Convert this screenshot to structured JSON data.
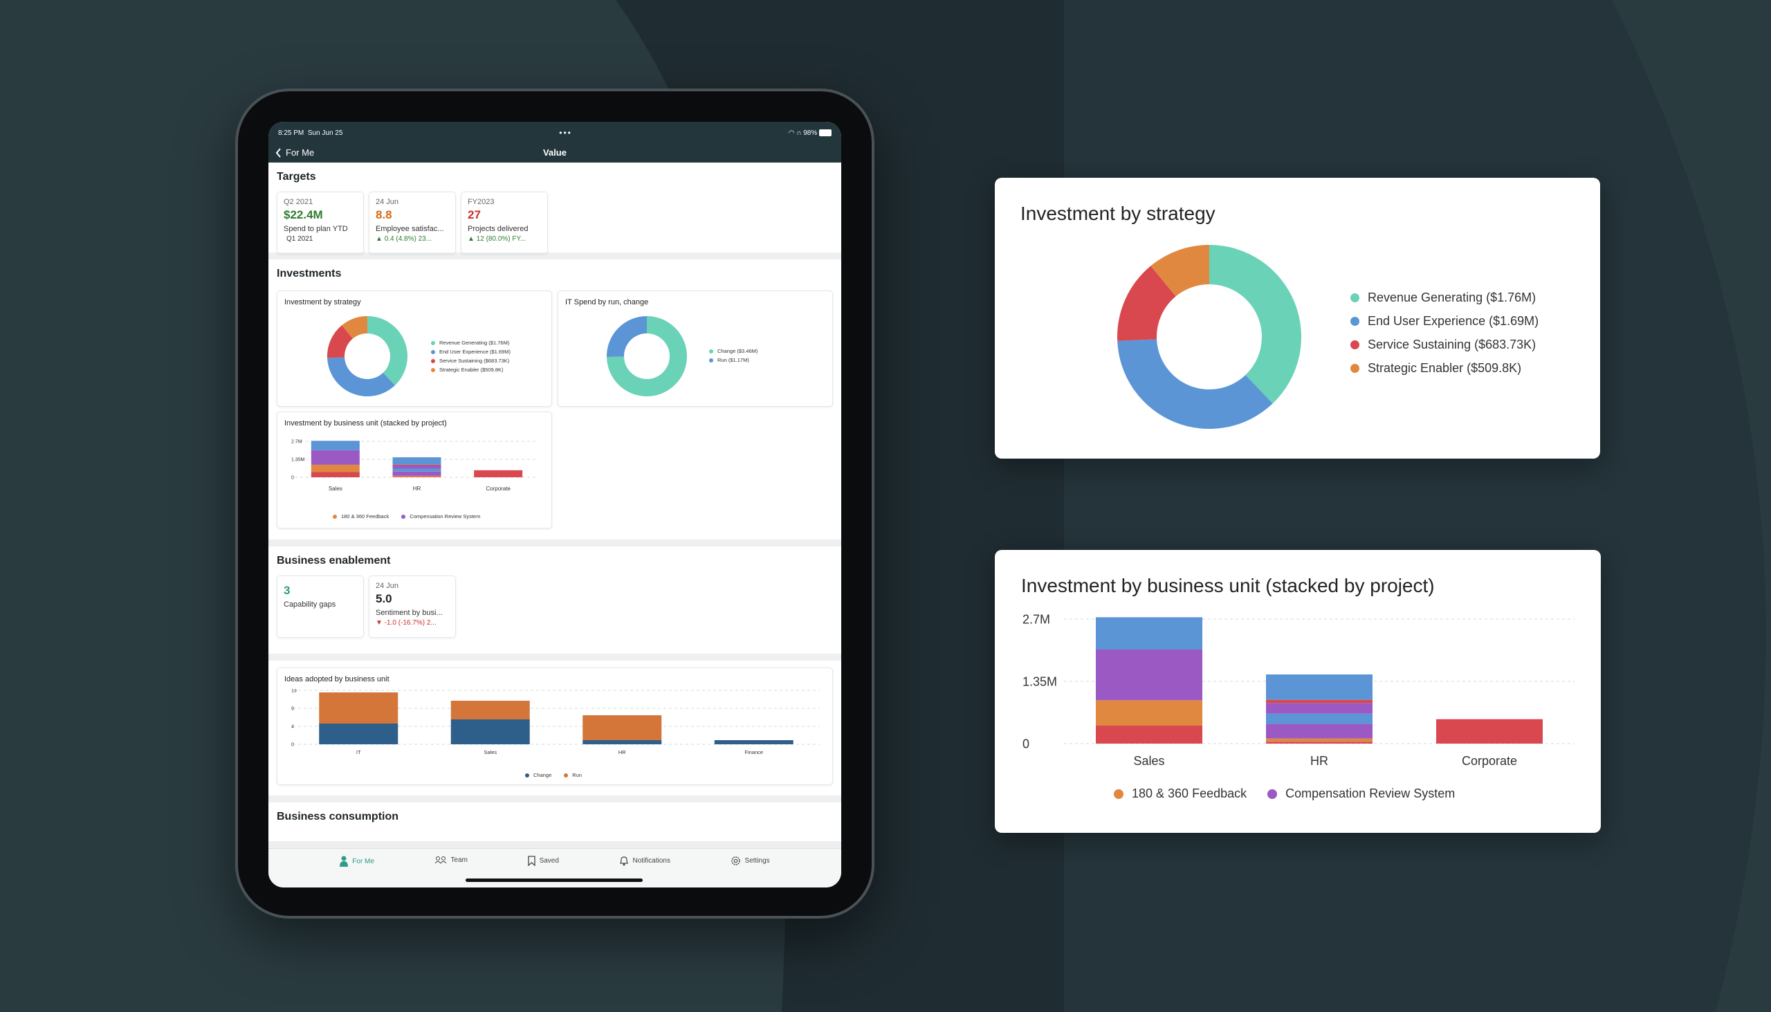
{
  "colors": {
    "teal": "#69d2b7",
    "blue": "#5b95d6",
    "red": "#d9484e",
    "orange": "#e08840",
    "purple": "#9b59c4",
    "darkblue": "#2e5f8a",
    "runorange": "#d4763a"
  },
  "status": {
    "time": "8:25 PM",
    "date": "Sun Jun 25",
    "battery": "98%"
  },
  "nav": {
    "back_label": "For Me",
    "title": "Value"
  },
  "targets": {
    "title": "Targets",
    "kpis": [
      {
        "date": "Q2 2021",
        "value": "$22.4M",
        "label": "Spend to plan YTD",
        "change": "Q1 2021"
      },
      {
        "date": "24 Jun",
        "value": "8.8",
        "label": "Employee satisfac...",
        "change": "0.4 (4.8%) 23..."
      },
      {
        "date": "FY2023",
        "value": "27",
        "label": "Projects delivered",
        "change": "12 (80.0%) FY..."
      }
    ]
  },
  "investments": {
    "title": "Investments",
    "strategy": {
      "title": "Investment by strategy",
      "legend": [
        "Revenue Generating ($1.76M)",
        "End User Experience ($1.69M)",
        "Service Sustaining ($683.73K)",
        "Strategic Enabler ($509.8K)"
      ]
    },
    "it_spend": {
      "title": "IT Spend by run, change",
      "legend": [
        "Change ($3.46M)",
        "Run ($1.17M)"
      ]
    },
    "bu": {
      "title": "Investment by business unit (stacked by project)",
      "yticks": [
        "2.7M",
        "1.35M",
        "0"
      ],
      "categories": [
        "Sales",
        "HR",
        "Corporate"
      ],
      "legend": [
        "180 & 360 Feedback",
        "Compensation Review System"
      ]
    }
  },
  "enablement": {
    "title": "Business enablement",
    "kpis": [
      {
        "date": "",
        "value": "3",
        "label": "Capability gaps",
        "change": ""
      },
      {
        "date": "24 Jun",
        "value": "5.0",
        "label": "Sentiment by busi...",
        "change": "-1.0 (-16.7%) 2..."
      }
    ]
  },
  "ideas": {
    "title": "Ideas adopted by business unit",
    "yticks": [
      "13",
      "9",
      "4",
      "0"
    ],
    "categories": [
      "IT",
      "Sales",
      "HR",
      "Finance"
    ],
    "legend": [
      "Change",
      "Run"
    ]
  },
  "consumption": {
    "title": "Business consumption"
  },
  "tabs": [
    "For Me",
    "Team",
    "Saved",
    "Notifications",
    "Settings"
  ],
  "big_strategy": {
    "title": "Investment by strategy",
    "legend": [
      "Revenue Generating ($1.76M)",
      "End User Experience ($1.69M)",
      "Service Sustaining ($683.73K)",
      "Strategic Enabler ($509.8K)"
    ]
  },
  "big_bu": {
    "title": "Investment by business unit (stacked by project)",
    "yticks": [
      "2.7M",
      "1.35M",
      "0"
    ],
    "categories": [
      "Sales",
      "HR",
      "Corporate"
    ],
    "legend": [
      "180 & 360 Feedback",
      "Compensation Review System"
    ]
  },
  "chart_data": [
    {
      "type": "pie",
      "title": "Investment by strategy",
      "categories": [
        "Revenue Generating",
        "End User Experience",
        "Service Sustaining",
        "Strategic Enabler"
      ],
      "values": [
        1760000,
        1690000,
        683730,
        509800
      ],
      "legend_position": "right"
    },
    {
      "type": "pie",
      "title": "IT Spend by run, change",
      "categories": [
        "Change",
        "Run"
      ],
      "values": [
        3460000,
        1170000
      ],
      "legend_position": "right"
    },
    {
      "type": "bar",
      "stacked": true,
      "title": "Investment by business unit (stacked by project)",
      "categories": [
        "Sales",
        "HR",
        "Corporate"
      ],
      "ylim": [
        0,
        2700000
      ],
      "series": [
        {
          "name": "",
          "values": [
            390000,
            40000,
            530000
          ]
        },
        {
          "name": "180 & 360 Feedback",
          "values": [
            550000,
            70000,
            0
          ]
        },
        {
          "name": "Compensation Review System",
          "values": [
            1100000,
            320000,
            0
          ]
        },
        {
          "name": "",
          "values": [
            0,
            220000,
            0
          ]
        },
        {
          "name": "",
          "values": [
            0,
            230000,
            0
          ]
        },
        {
          "name": "",
          "values": [
            0,
            70000,
            0
          ]
        },
        {
          "name": "",
          "values": [
            700000,
            550000,
            0
          ]
        }
      ]
    },
    {
      "type": "bar",
      "stacked": true,
      "title": "Ideas adopted by business unit",
      "categories": [
        "IT",
        "Sales",
        "HR",
        "Finance"
      ],
      "ylim": [
        0,
        13
      ],
      "series": [
        {
          "name": "Change",
          "values": [
            5,
            6,
            1,
            1
          ]
        },
        {
          "name": "Run",
          "values": [
            7.5,
            4.5,
            6,
            0
          ]
        }
      ],
      "legend_position": "bottom"
    }
  ]
}
